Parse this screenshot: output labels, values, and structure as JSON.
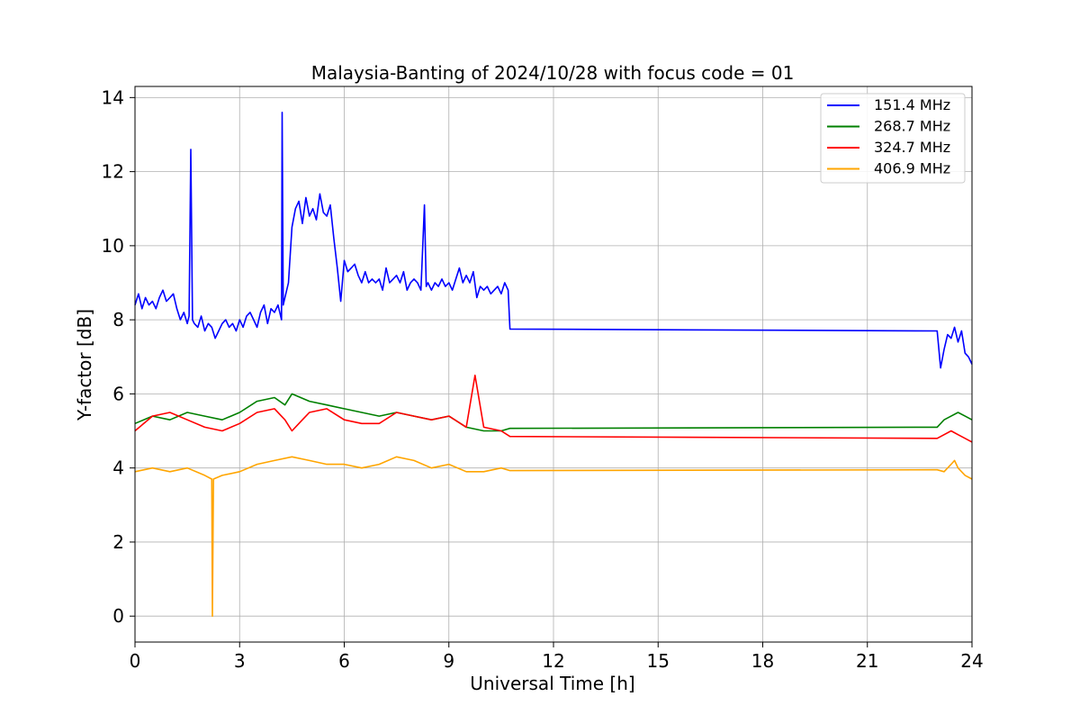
{
  "chart_data": {
    "type": "line",
    "title": "Malaysia-Banting of 2024/10/28 with focus code = 01",
    "xlabel": "Universal Time [h]",
    "ylabel": "Y-factor [dB]",
    "xlim": [
      0,
      24
    ],
    "ylim": [
      -0.7,
      14.3
    ],
    "xticks": [
      0,
      3,
      6,
      9,
      12,
      15,
      18,
      21,
      24
    ],
    "yticks": [
      0,
      2,
      4,
      6,
      8,
      10,
      12,
      14
    ],
    "grid": true,
    "legend_position": "top-right",
    "series": [
      {
        "name": "151.4 MHz",
        "color": "#0000ff",
        "x": [
          0,
          0.1,
          0.2,
          0.3,
          0.4,
          0.5,
          0.6,
          0.7,
          0.8,
          0.9,
          1.0,
          1.1,
          1.2,
          1.3,
          1.4,
          1.5,
          1.55,
          1.6,
          1.65,
          1.7,
          1.8,
          1.9,
          2.0,
          2.1,
          2.2,
          2.3,
          2.4,
          2.5,
          2.6,
          2.7,
          2.8,
          2.9,
          3.0,
          3.1,
          3.2,
          3.3,
          3.4,
          3.5,
          3.6,
          3.7,
          3.8,
          3.9,
          4.0,
          4.1,
          4.2,
          4.22,
          4.25,
          4.3,
          4.4,
          4.5,
          4.6,
          4.7,
          4.8,
          4.9,
          5.0,
          5.1,
          5.2,
          5.3,
          5.4,
          5.5,
          5.6,
          5.7,
          5.8,
          5.9,
          6.0,
          6.1,
          6.2,
          6.3,
          6.4,
          6.5,
          6.6,
          6.7,
          6.8,
          6.9,
          7.0,
          7.1,
          7.2,
          7.3,
          7.4,
          7.5,
          7.6,
          7.7,
          7.8,
          7.9,
          8.0,
          8.1,
          8.2,
          8.3,
          8.35,
          8.4,
          8.5,
          8.6,
          8.7,
          8.8,
          8.9,
          9.0,
          9.1,
          9.2,
          9.3,
          9.4,
          9.5,
          9.6,
          9.7,
          9.8,
          9.9,
          10.0,
          10.1,
          10.2,
          10.3,
          10.4,
          10.5,
          10.6,
          10.7,
          10.75,
          23.0,
          23.1,
          23.2,
          23.3,
          23.4,
          23.5,
          23.6,
          23.7,
          23.8,
          23.9,
          24.0
        ],
        "values": [
          8.4,
          8.7,
          8.3,
          8.6,
          8.4,
          8.5,
          8.3,
          8.6,
          8.8,
          8.5,
          8.6,
          8.7,
          8.3,
          8.0,
          8.2,
          7.9,
          8.1,
          12.6,
          8.0,
          7.9,
          7.8,
          8.1,
          7.7,
          7.9,
          7.8,
          7.5,
          7.7,
          7.9,
          8.0,
          7.8,
          7.9,
          7.7,
          8.0,
          7.8,
          8.1,
          8.2,
          8.0,
          7.8,
          8.2,
          8.4,
          7.9,
          8.3,
          8.2,
          8.4,
          8.0,
          13.6,
          8.4,
          8.6,
          9.0,
          10.5,
          11.0,
          11.2,
          10.6,
          11.3,
          10.8,
          11.0,
          10.7,
          11.4,
          10.9,
          10.8,
          11.1,
          10.2,
          9.4,
          8.5,
          9.6,
          9.3,
          9.4,
          9.5,
          9.2,
          9.0,
          9.3,
          9.0,
          9.1,
          9.0,
          9.1,
          8.8,
          9.4,
          9.0,
          9.1,
          9.2,
          9.0,
          9.3,
          8.8,
          9.0,
          9.1,
          9.0,
          8.8,
          11.1,
          8.9,
          9.0,
          8.8,
          9.0,
          8.9,
          9.1,
          8.9,
          9.0,
          8.8,
          9.1,
          9.4,
          9.0,
          9.2,
          9.0,
          9.3,
          8.6,
          8.9,
          8.8,
          8.9,
          8.7,
          8.8,
          8.9,
          8.7,
          9.0,
          8.8,
          7.75,
          7.7,
          6.7,
          7.2,
          7.6,
          7.5,
          7.8,
          7.4,
          7.7,
          7.1,
          7.0,
          6.8
        ]
      },
      {
        "name": "268.7 MHz",
        "color": "#008000",
        "x": [
          0,
          0.5,
          1.0,
          1.5,
          2.0,
          2.5,
          3.0,
          3.5,
          4.0,
          4.3,
          4.5,
          5.0,
          5.5,
          6.0,
          6.5,
          7.0,
          7.5,
          8.0,
          8.5,
          9.0,
          9.5,
          10.0,
          10.5,
          10.75,
          23.0,
          23.2,
          23.4,
          23.6,
          23.8,
          24.0
        ],
        "values": [
          5.2,
          5.4,
          5.3,
          5.5,
          5.4,
          5.3,
          5.5,
          5.8,
          5.9,
          5.7,
          6.0,
          5.8,
          5.7,
          5.6,
          5.5,
          5.4,
          5.5,
          5.4,
          5.3,
          5.4,
          5.1,
          5.0,
          5.0,
          5.07,
          5.1,
          5.3,
          5.4,
          5.5,
          5.4,
          5.3
        ]
      },
      {
        "name": "324.7 MHz",
        "color": "#ff0000",
        "x": [
          0,
          0.5,
          1.0,
          1.5,
          2.0,
          2.5,
          3.0,
          3.5,
          4.0,
          4.3,
          4.5,
          4.8,
          5.0,
          5.5,
          6.0,
          6.5,
          7.0,
          7.5,
          8.0,
          8.5,
          9.0,
          9.5,
          9.75,
          10.0,
          10.5,
          10.75,
          23.0,
          23.2,
          23.4,
          23.6,
          23.8,
          24.0
        ],
        "values": [
          5.0,
          5.4,
          5.5,
          5.3,
          5.1,
          5.0,
          5.2,
          5.5,
          5.6,
          5.3,
          5.0,
          5.3,
          5.5,
          5.6,
          5.3,
          5.2,
          5.2,
          5.5,
          5.4,
          5.3,
          5.4,
          5.1,
          6.5,
          5.1,
          5.0,
          4.85,
          4.8,
          4.9,
          5.0,
          4.9,
          4.8,
          4.7
        ]
      },
      {
        "name": "406.9 MHz",
        "color": "#ffa500",
        "x": [
          0,
          0.5,
          1.0,
          1.5,
          2.0,
          2.2,
          2.22,
          2.25,
          2.5,
          3.0,
          3.5,
          4.0,
          4.5,
          5.0,
          5.5,
          6.0,
          6.5,
          7.0,
          7.5,
          8.0,
          8.5,
          9.0,
          9.5,
          10.0,
          10.5,
          10.75,
          23.0,
          23.2,
          23.4,
          23.5,
          23.6,
          23.8,
          24.0
        ],
        "values": [
          3.9,
          4.0,
          3.9,
          4.0,
          3.8,
          3.7,
          0.0,
          3.7,
          3.8,
          3.9,
          4.1,
          4.2,
          4.3,
          4.2,
          4.1,
          4.1,
          4.0,
          4.1,
          4.3,
          4.2,
          4.0,
          4.1,
          3.9,
          3.9,
          4.0,
          3.93,
          3.95,
          3.9,
          4.1,
          4.2,
          4.0,
          3.8,
          3.7
        ]
      }
    ]
  }
}
